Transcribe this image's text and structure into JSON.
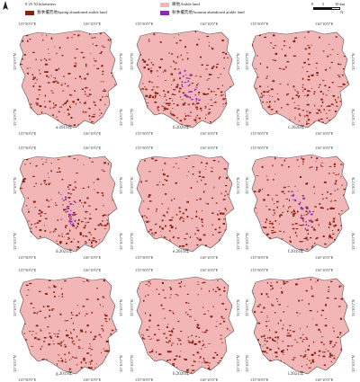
{
  "legend": {
    "items": [
      {
        "label": "0 25 50 kilometers",
        "color": "#ffffff"
      },
      {
        "label": "耕地Arable land",
        "color": "#f3b6b6"
      },
      {
        "label": "春季撂荒地Spring abandoned arable land",
        "color": "#8b2010"
      },
      {
        "label": "秋季撂荒地Autumn abandoned arable land",
        "color": "#8a2ab8"
      }
    ]
  },
  "scale": {
    "ticks": [
      "0",
      "5",
      "10 km"
    ],
    "unit": "N"
  },
  "coords": {
    "top_left": "115°50′0″E",
    "top_right": "116°10′0″E",
    "bottom_left": "115°50′0″E",
    "bottom_right": "116°10′0″E",
    "left_top": "35°30′0″N",
    "left_bottom": "35°10′0″N"
  },
  "panels": [
    {
      "caption": "a.2019年",
      "has_autumn": false
    },
    {
      "caption": "b.2020年",
      "has_autumn": true
    },
    {
      "caption": "c.2020年",
      "has_autumn": false
    },
    {
      "caption": "d.2021年",
      "has_autumn": true
    },
    {
      "caption": "e.2019年",
      "has_autumn": false
    },
    {
      "caption": "f.2019年",
      "has_autumn": true
    },
    {
      "caption": "g.2019年",
      "has_autumn": false
    },
    {
      "caption": "h.2020年",
      "has_autumn": false
    },
    {
      "caption": "i.2021年",
      "has_autumn": false
    }
  ],
  "colors": {
    "arable": "#f3b6b6",
    "spring": "#8b2010",
    "autumn": "#8a2ab8",
    "outline": "#555555"
  }
}
